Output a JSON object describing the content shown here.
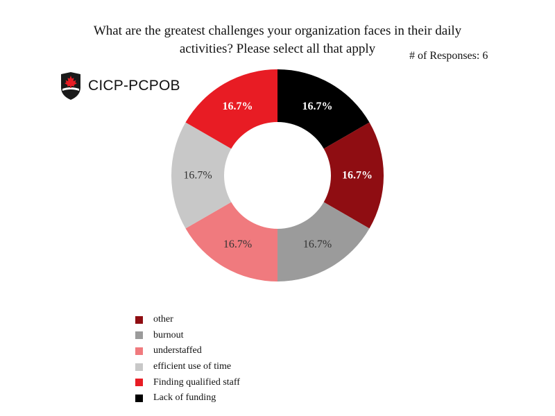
{
  "title_lines": [
    "What are the greatest challenges your organization faces in their daily",
    "activities? Please select all that apply"
  ],
  "responses_text": "# of Responses: 6",
  "logo": {
    "text": "CICP-PCPOB"
  },
  "chart_data": {
    "type": "pie",
    "donut": true,
    "title": "What are the greatest challenges your organization faces in their daily activities? Please select all that apply",
    "legend_position": "bottom-left",
    "slices": [
      {
        "name": "Lack of funding",
        "value": 16.7,
        "label": "16.7%",
        "color": "#000000",
        "label_color": "#ffffff"
      },
      {
        "name": "other",
        "value": 16.7,
        "label": "16.7%",
        "color": "#8f0d12",
        "label_color": "#ffffff"
      },
      {
        "name": "burnout",
        "value": 16.7,
        "label": "16.7%",
        "color": "#9b9b9b",
        "label_color": "#333333"
      },
      {
        "name": "understaffed",
        "value": 16.7,
        "label": "16.7%",
        "color": "#f07a7e",
        "label_color": "#333333"
      },
      {
        "name": "efficient use of time",
        "value": 16.7,
        "label": "16.7%",
        "color": "#c8c8c8",
        "label_color": "#333333"
      },
      {
        "name": "Finding qualified staff",
        "value": 16.7,
        "label": "16.7%",
        "color": "#e81c24",
        "label_color": "#ffffff"
      }
    ],
    "legend_order": [
      "other",
      "burnout",
      "understaffed",
      "efficient use of time",
      "Finding qualified staff",
      "Lack of funding"
    ]
  }
}
